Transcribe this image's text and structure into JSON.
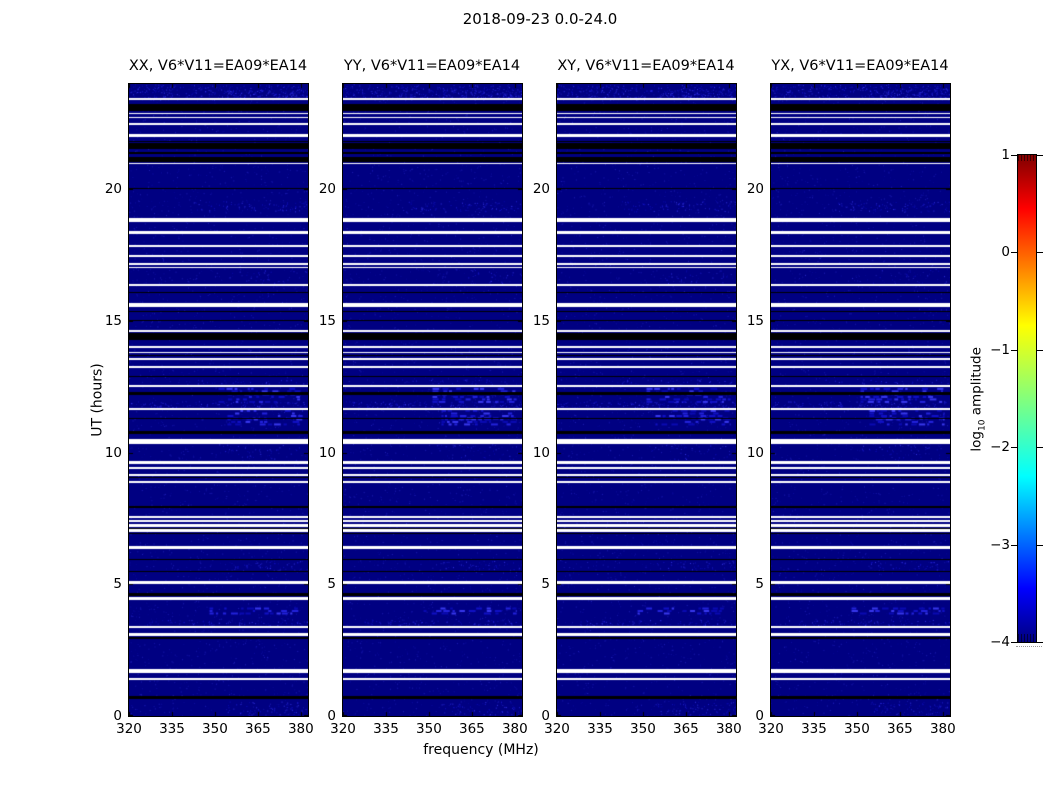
{
  "figure": {
    "title": "2018-09-23 0.0-24.0",
    "background": "#ffffff"
  },
  "chart_data": {
    "type": "heatmap",
    "title": "2018-09-23 0.0-24.0",
    "panels": [
      {
        "label": "XX, V6*V11=EA09*EA14"
      },
      {
        "label": "YY, V6*V11=EA09*EA14"
      },
      {
        "label": "XY, V6*V11=EA09*EA14"
      },
      {
        "label": "YX, V6*V11=EA09*EA14"
      }
    ],
    "xlabel": "frequency (MHz)",
    "ylabel": "UT (hours)",
    "xlim": [
      320,
      382.5
    ],
    "ylim": [
      0,
      24
    ],
    "xticks": [
      320,
      335,
      350,
      365,
      380
    ],
    "yticks": [
      0,
      5,
      10,
      15,
      20
    ],
    "colorbar": {
      "label": "log10 amplitude",
      "label_parts": {
        "log": "log",
        "sub": "10",
        "rest": " amplitude"
      },
      "ticks": [
        1,
        0,
        -1,
        -2,
        -3,
        -4
      ],
      "vmin": -4,
      "vmax": 1,
      "colormap": "jet",
      "gradient_stops": [
        [
          "0%",
          "#000080"
        ],
        [
          "11%",
          "#0000ff"
        ],
        [
          "34%",
          "#00ffff"
        ],
        [
          "65%",
          "#ffff00"
        ],
        [
          "89%",
          "#ff0000"
        ],
        [
          "100%",
          "#800000"
        ]
      ]
    },
    "colors": {
      "base": "#000082",
      "flagged_white": "#ffffff",
      "flagged_black": "#000000",
      "noise_palette": [
        "#1a1ac0",
        "#2a2ad4",
        "#3c3cee",
        "#0d0daa"
      ],
      "rfi_palette": [
        "#1212c8",
        "#2525e0",
        "#3b3bf2",
        "#0b0bb4"
      ]
    },
    "white_rows_ut": [
      [
        23.39,
        23.47
      ],
      [
        22.87,
        22.91
      ],
      [
        22.71,
        22.75
      ],
      [
        22.44,
        22.52
      ],
      [
        21.99,
        22.1
      ],
      [
        20.97,
        21.01
      ],
      [
        18.76,
        18.91
      ],
      [
        18.31,
        18.42
      ],
      [
        17.81,
        17.89
      ],
      [
        17.43,
        17.51
      ],
      [
        17.13,
        17.2
      ],
      [
        17.01,
        17.05
      ],
      [
        16.33,
        16.41
      ],
      [
        15.53,
        15.68
      ],
      [
        14.58,
        14.66
      ],
      [
        13.98,
        14.05
      ],
      [
        13.79,
        13.83
      ],
      [
        13.52,
        13.6
      ],
      [
        13.22,
        13.29
      ],
      [
        12.49,
        12.57
      ],
      [
        11.62,
        11.7
      ],
      [
        10.33,
        10.52
      ],
      [
        9.57,
        9.68
      ],
      [
        9.38,
        9.46
      ],
      [
        9.11,
        9.19
      ],
      [
        8.85,
        8.92
      ],
      [
        7.52,
        7.6
      ],
      [
        7.37,
        7.44
      ],
      [
        7.18,
        7.29
      ],
      [
        6.99,
        7.1
      ],
      [
        6.34,
        6.46
      ],
      [
        5.01,
        5.13
      ],
      [
        4.41,
        4.52
      ],
      [
        3.34,
        3.42
      ],
      [
        3.04,
        3.15
      ],
      [
        1.63,
        1.78
      ],
      [
        1.37,
        1.44
      ]
    ],
    "black_rows_ut": [
      [
        22.98,
        23.24
      ],
      [
        21.8,
        21.85
      ],
      [
        21.54,
        21.76
      ],
      [
        21.35,
        21.42
      ],
      [
        21.04,
        21.23
      ],
      [
        20.02,
        20.06
      ],
      [
        16.06,
        16.1
      ],
      [
        15.35,
        15.39
      ],
      [
        15.0,
        15.04
      ],
      [
        14.28,
        14.55
      ],
      [
        13.67,
        13.71
      ],
      [
        12.87,
        12.91
      ],
      [
        12.19,
        12.3
      ],
      [
        11.28,
        11.32
      ],
      [
        10.71,
        10.82
      ],
      [
        9.04,
        9.08
      ],
      [
        7.9,
        7.98
      ],
      [
        7.1,
        7.14
      ],
      [
        6.91,
        6.95
      ],
      [
        5.92,
        5.96
      ],
      [
        5.47,
        5.51
      ],
      [
        4.56,
        4.67
      ],
      [
        2.92,
        3.0
      ],
      [
        0.65,
        0.76
      ]
    ],
    "rfi_bands": [
      {
        "ut": [
          23.4,
          23.97
        ],
        "f": [
          0.0,
          1.0
        ],
        "kind": "noise",
        "density": 0.1
      },
      {
        "ut": [
          23.45,
          23.8
        ],
        "f": [
          0.55,
          1.0
        ],
        "kind": "noise",
        "density": 0.12
      },
      {
        "ut": [
          19.15,
          19.55
        ],
        "f": [
          0.35,
          1.0
        ],
        "kind": "noise",
        "density": 0.06
      },
      {
        "ut": [
          16.35,
          16.95
        ],
        "f": [
          0.55,
          1.0
        ],
        "kind": "noise",
        "density": 0.02
      },
      {
        "ut": [
          12.62,
          12.78
        ],
        "f": [
          0.3,
          1.0
        ],
        "kind": "noise",
        "density": 0.05
      },
      {
        "ut": [
          12.28,
          12.46
        ],
        "f": [
          0.5,
          0.97
        ],
        "kind": "blocks",
        "density": 0.5
      },
      {
        "ut": [
          11.95,
          12.25
        ],
        "f": [
          0.5,
          0.97
        ],
        "kind": "blocks",
        "density": 0.6
      },
      {
        "ut": [
          11.72,
          11.95
        ],
        "f": [
          0.0,
          1.0
        ],
        "kind": "noise",
        "density": 0.1
      },
      {
        "ut": [
          11.33,
          11.62
        ],
        "f": [
          0.55,
          0.97
        ],
        "kind": "blocks",
        "density": 0.6
      },
      {
        "ut": [
          11.03,
          11.3
        ],
        "f": [
          0.55,
          0.97
        ],
        "kind": "blocks",
        "density": 0.55
      },
      {
        "ut": [
          10.05,
          10.32
        ],
        "f": [
          0.5,
          1.0
        ],
        "kind": "noise",
        "density": 0.04
      },
      {
        "ut": [
          9.7,
          10.0
        ],
        "f": [
          0.6,
          1.0
        ],
        "kind": "noise",
        "density": 0.02
      },
      {
        "ut": [
          5.55,
          5.9
        ],
        "f": [
          0.55,
          1.0
        ],
        "kind": "noise",
        "density": 0.05
      },
      {
        "ut": [
          3.88,
          4.12
        ],
        "f": [
          0.45,
          0.97
        ],
        "kind": "blocks",
        "density": 0.6
      },
      {
        "ut": [
          3.45,
          3.65
        ],
        "f": [
          0.1,
          1.0
        ],
        "kind": "noise",
        "density": 0.08
      },
      {
        "ut": [
          0.05,
          0.55
        ],
        "f": [
          0.55,
          1.0
        ],
        "kind": "noise",
        "density": 0.06
      }
    ]
  }
}
